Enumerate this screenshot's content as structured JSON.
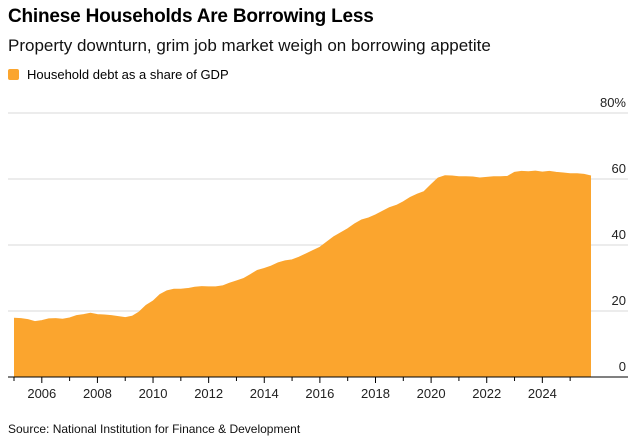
{
  "header": {
    "title": "Chinese Households Are Borrowing Less",
    "subtitle": "Property downturn, grim job market weigh on borrowing appetite"
  },
  "source": "Source: National Institution for Finance & Development",
  "chart_data": {
    "type": "area",
    "title": "Chinese Households Are Borrowing Less",
    "subtitle": "Property downturn, grim job market weigh on borrowing appetite",
    "xlabel": "",
    "ylabel": "",
    "color": "#FBA52E",
    "legend": "top-left",
    "grid": true,
    "ylim": [
      0,
      80
    ],
    "xlim": [
      2005.0,
      2025.75
    ],
    "y_ticks": [
      0,
      20,
      40,
      60,
      80
    ],
    "y_tick_labels": [
      "0",
      "20",
      "40",
      "60",
      "80%"
    ],
    "x_ticks": [
      2006,
      2008,
      2010,
      2012,
      2014,
      2016,
      2018,
      2020,
      2022,
      2024
    ],
    "x_tick_labels": [
      "2006",
      "2008",
      "2010",
      "2012",
      "2014",
      "2016",
      "2018",
      "2020",
      "2022",
      "2024"
    ],
    "series": [
      {
        "name": "Household debt as a share of GDP",
        "x": [
          2005.0,
          2005.25,
          2005.5,
          2005.75,
          2006.0,
          2006.25,
          2006.5,
          2006.75,
          2007.0,
          2007.25,
          2007.5,
          2007.75,
          2008.0,
          2008.25,
          2008.5,
          2008.75,
          2009.0,
          2009.25,
          2009.5,
          2009.75,
          2010.0,
          2010.25,
          2010.5,
          2010.75,
          2011.0,
          2011.25,
          2011.5,
          2011.75,
          2012.0,
          2012.25,
          2012.5,
          2012.75,
          2013.0,
          2013.25,
          2013.5,
          2013.75,
          2014.0,
          2014.25,
          2014.5,
          2014.75,
          2015.0,
          2015.25,
          2015.5,
          2015.75,
          2016.0,
          2016.25,
          2016.5,
          2016.75,
          2017.0,
          2017.25,
          2017.5,
          2017.75,
          2018.0,
          2018.25,
          2018.5,
          2018.75,
          2019.0,
          2019.25,
          2019.5,
          2019.75,
          2020.0,
          2020.25,
          2020.5,
          2020.75,
          2021.0,
          2021.25,
          2021.5,
          2021.75,
          2022.0,
          2022.25,
          2022.5,
          2022.75,
          2023.0,
          2023.25,
          2023.5,
          2023.75,
          2024.0,
          2024.25,
          2024.5,
          2024.75,
          2025.0,
          2025.25,
          2025.5,
          2025.75
        ],
        "values": [
          17.8,
          17.7,
          17.4,
          16.8,
          17.1,
          17.6,
          17.7,
          17.5,
          17.9,
          18.6,
          18.9,
          19.3,
          18.9,
          18.8,
          18.6,
          18.3,
          18.0,
          18.4,
          19.7,
          21.7,
          23.0,
          25.0,
          26.1,
          26.6,
          26.6,
          26.8,
          27.2,
          27.4,
          27.3,
          27.3,
          27.6,
          28.4,
          29.1,
          29.8,
          31.0,
          32.3,
          32.9,
          33.6,
          34.6,
          35.2,
          35.5,
          36.3,
          37.3,
          38.3,
          39.3,
          40.9,
          42.5,
          43.7,
          44.9,
          46.4,
          47.6,
          48.2,
          49.1,
          50.2,
          51.3,
          52.0,
          53.1,
          54.4,
          55.4,
          56.2,
          58.3,
          60.3,
          61.0,
          60.9,
          60.7,
          60.7,
          60.6,
          60.3,
          60.5,
          60.7,
          60.7,
          60.8,
          62.0,
          62.3,
          62.2,
          62.4,
          62.1,
          62.3,
          62.0,
          61.8,
          61.6,
          61.6,
          61.4,
          60.9
        ]
      }
    ]
  }
}
